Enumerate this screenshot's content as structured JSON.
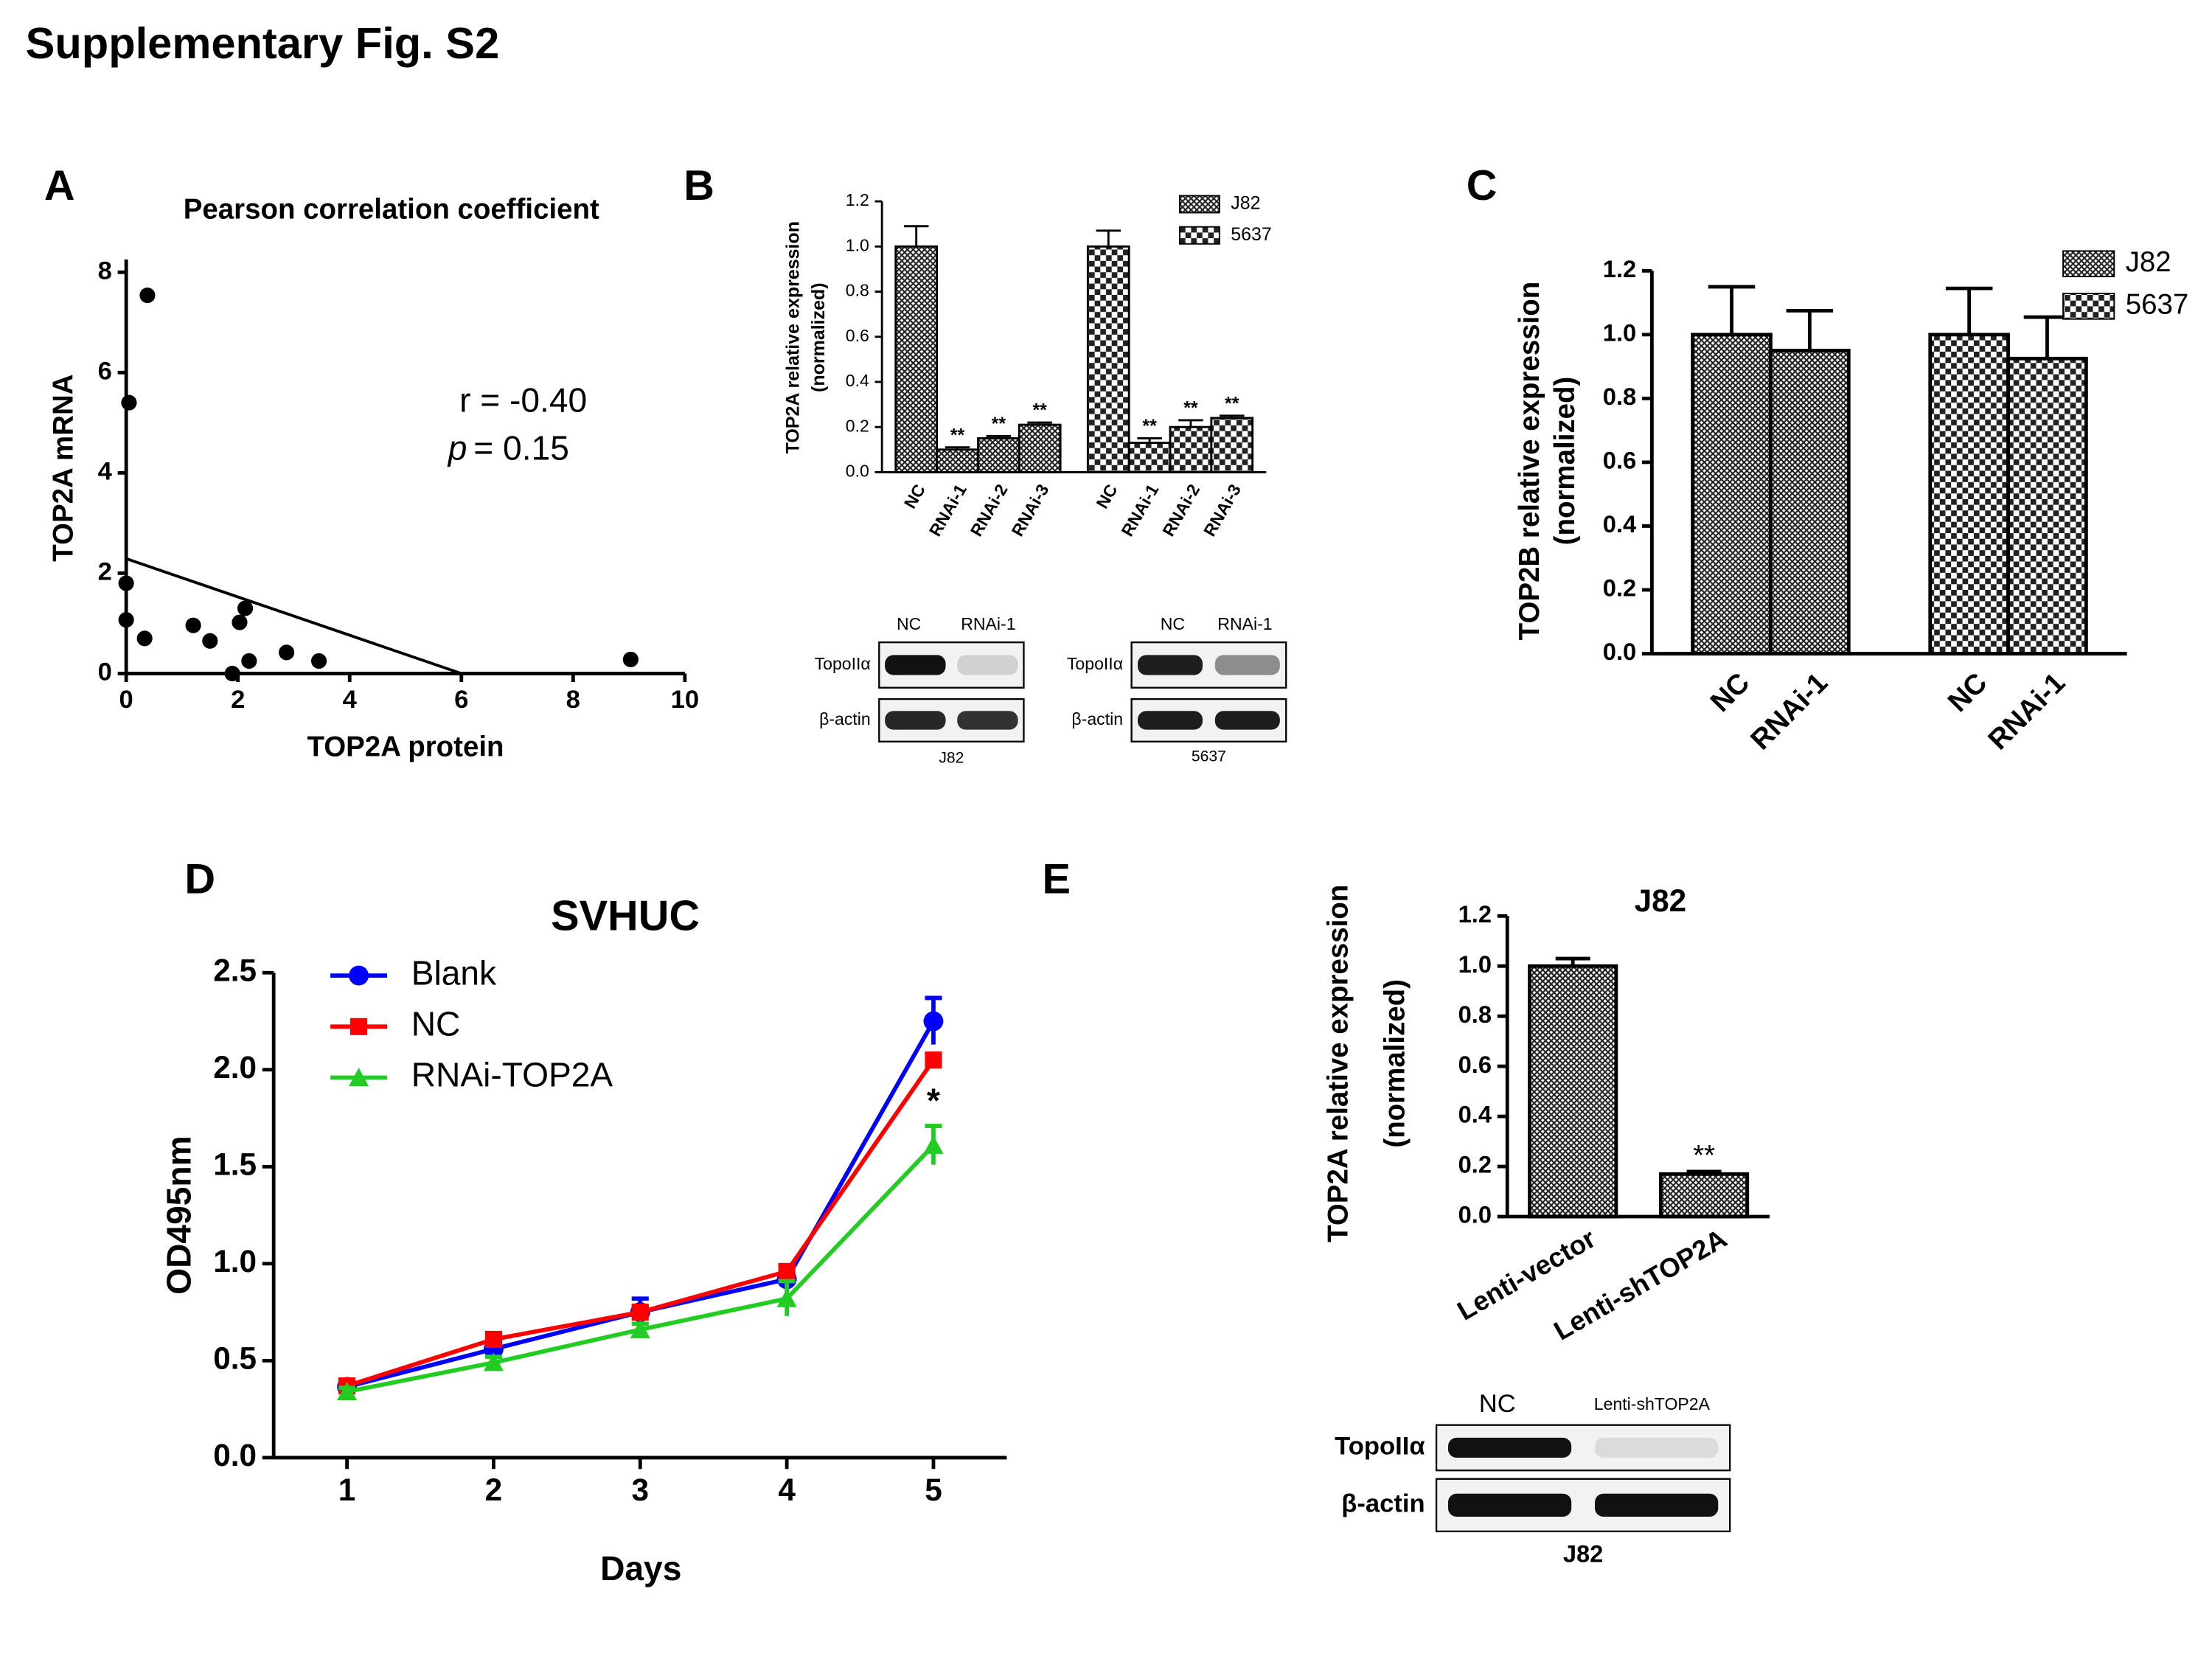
{
  "title": "Supplementary Fig. S2",
  "panels": [
    "A",
    "B",
    "C",
    "D",
    "E"
  ],
  "chart_data": [
    {
      "type": "scatter",
      "title": "Pearson correlation coefficient",
      "xlabel": "TOP2A protein",
      "ylabel": "TOP2A mRNA",
      "x": [
        0.38,
        0.05,
        0,
        0,
        0.33,
        1.2,
        1.5,
        1.9,
        2.03,
        2.13,
        2.2,
        2.87,
        3.45,
        9.03
      ],
      "y": [
        7.54,
        5.4,
        1.8,
        1.07,
        0.7,
        0.96,
        0.65,
        0,
        1.02,
        1.3,
        0.25,
        0.42,
        0.25,
        0.28
      ],
      "color": "#000000",
      "fit_line": {
        "x": [
          0,
          6
        ],
        "y": [
          2.29,
          0
        ]
      },
      "annotations": {
        "r": "r = -0.40",
        "p_symbol": "p",
        "p_value": "= 0.15"
      },
      "xlim": [
        0,
        10
      ],
      "xticks": [
        0,
        2,
        4,
        6,
        8,
        10
      ],
      "ylim": [
        0,
        8
      ],
      "yticks": [
        0,
        2,
        4,
        6,
        8
      ]
    },
    {
      "type": "grouped_bar",
      "ylabel": [
        "TOP2A relative expression",
        "(normalized)"
      ],
      "categories": [
        "NC",
        "RNAi-1",
        "RNAi-2",
        "RNAi-3"
      ],
      "series": [
        {
          "name": "J82",
          "color": "#222222",
          "pattern": "hatch",
          "values": [
            1.0,
            0.1,
            0.15,
            0.21
          ],
          "errors": [
            0.09,
            0.01,
            0.01,
            0.01
          ],
          "significance": [
            null,
            "**",
            "**",
            "**"
          ]
        },
        {
          "name": "5637",
          "color": "#222222",
          "pattern": "checker",
          "values": [
            1.0,
            0.13,
            0.2,
            0.24
          ],
          "errors": [
            0.07,
            0.02,
            0.03,
            0.01
          ],
          "significance": [
            null,
            "**",
            "**",
            "**"
          ]
        }
      ],
      "ylim": [
        0,
        1.2
      ],
      "yticks": [
        {
          "value": 0,
          "label": "0.0"
        },
        0.2,
        0.4,
        0.6,
        0.8,
        {
          "value": 1,
          "label": "1.0"
        },
        1.2
      ],
      "legend": "top-right"
    },
    {
      "type": "grouped_bar",
      "ylabel": [
        "TOP2B relative expression",
        "(normalized)"
      ],
      "categories": [
        "NC",
        "RNAi-1"
      ],
      "series": [
        {
          "name": "J82",
          "color": "#222222",
          "pattern": "hatch",
          "values": [
            1.0,
            0.95
          ],
          "errors": [
            0.15,
            0.125
          ]
        },
        {
          "name": "5637",
          "color": "#222222",
          "pattern": "checker",
          "values": [
            1.0,
            0.925
          ],
          "errors": [
            0.145,
            0.13
          ]
        }
      ],
      "ylim": [
        0,
        1.2
      ],
      "yticks": [
        {
          "value": 0,
          "label": "0.0"
        },
        0.2,
        0.4,
        0.6,
        0.8,
        {
          "value": 1,
          "label": "1.0"
        },
        1.2
      ],
      "legend": "top-right"
    },
    {
      "type": "line",
      "title": "SVHUC",
      "xlabel": "Days",
      "ylabel": "OD495nm",
      "x": [
        1,
        2,
        3,
        4,
        5
      ],
      "series": [
        {
          "name": "Blank",
          "color": "#0000ff",
          "marker": "circle",
          "values": [
            0.365,
            0.56,
            0.75,
            0.92,
            2.25
          ],
          "errors": [
            0.02,
            0.05,
            0.07,
            0.03,
            0.12
          ]
        },
        {
          "name": "NC",
          "color": "#ff0000",
          "marker": "square",
          "values": [
            0.37,
            0.61,
            0.75,
            0.96,
            2.05
          ],
          "errors": [
            0.02,
            0.03,
            0.03,
            0.03,
            0.03
          ]
        },
        {
          "name": "RNAi-TOP2A",
          "color": "#22cc22",
          "marker": "triangle",
          "values": [
            0.34,
            0.49,
            0.66,
            0.82,
            1.61
          ],
          "errors": [
            0.02,
            0.03,
            0.03,
            0.09,
            0.1
          ],
          "significance": [
            null,
            null,
            null,
            null,
            "*"
          ]
        }
      ],
      "xlim": [
        0.5,
        5.5
      ],
      "xticks": [
        1,
        2,
        3,
        4,
        5
      ],
      "ylim": [
        0,
        2.5
      ],
      "yticks": [
        {
          "value": 0,
          "label": "0.0"
        },
        0.5,
        {
          "value": 1,
          "label": "1.0"
        },
        1.5,
        {
          "value": 2,
          "label": "2.0"
        },
        2.5
      ],
      "legend": "top-left"
    },
    {
      "type": "bar",
      "title": "J82",
      "ylabel": [
        "TOP2A relative expression",
        "(normalized)"
      ],
      "categories": [
        "Lenti-vector",
        "Lenti-shTOP2A"
      ],
      "values": [
        1.0,
        0.17
      ],
      "errors": [
        0.03,
        0.01
      ],
      "significance": [
        null,
        "**"
      ],
      "color": "#222222",
      "pattern": "hatch",
      "ylim": [
        0,
        1.2
      ],
      "yticks": [
        {
          "value": 0,
          "label": "0.0"
        },
        0.2,
        0.4,
        0.6,
        0.8,
        {
          "value": 1,
          "label": "1.0"
        },
        1.2
      ]
    }
  ],
  "blots": [
    {
      "columns": [
        "NC",
        "RNAi-1"
      ],
      "rows": [
        "TopoIIα",
        "β-actin"
      ],
      "cell_line": "J82"
    },
    {
      "columns": [
        "NC",
        "RNAi-1"
      ],
      "rows": [
        "TopoIIα",
        "β-actin"
      ],
      "cell_line": "5637"
    },
    {
      "columns": [
        "NC",
        "Lenti-shTOP2A"
      ],
      "rows": [
        "TopoIIα",
        "β-actin"
      ],
      "cell_line": "J82"
    }
  ]
}
